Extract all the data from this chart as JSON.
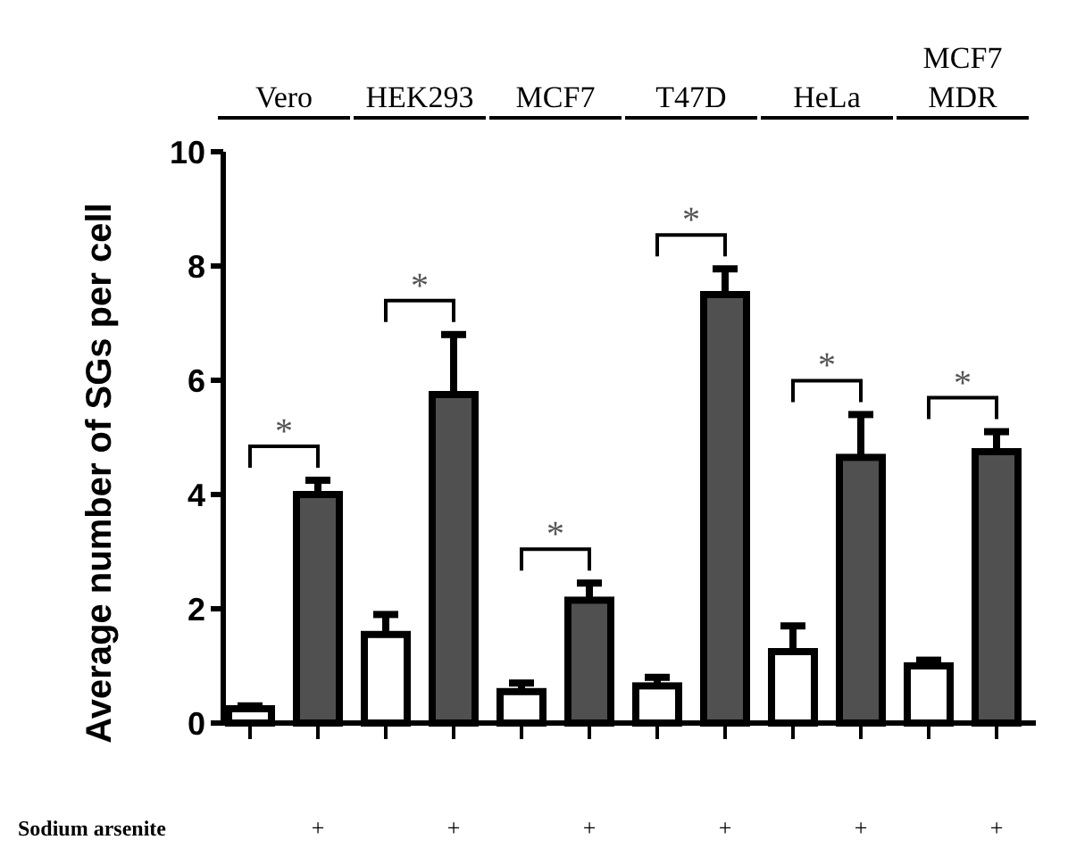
{
  "chart_data": {
    "type": "bar",
    "ylabel": "Average number of SGs per cell",
    "xlabel": "Sodium arsenite",
    "categories": [
      null,
      "+",
      null,
      "+",
      null,
      "+",
      null,
      "+",
      null,
      "+",
      null,
      "+"
    ],
    "values": [
      0.25,
      4.0,
      1.55,
      5.75,
      0.55,
      2.15,
      0.65,
      7.5,
      1.25,
      4.65,
      1.0,
      4.75
    ],
    "errors": [
      0.05,
      0.25,
      0.35,
      1.05,
      0.15,
      0.3,
      0.15,
      0.45,
      0.45,
      0.75,
      0.1,
      0.35
    ],
    "colors": [
      "#ffffff",
      "#505050",
      "#ffffff",
      "#505050",
      "#ffffff",
      "#505050",
      "#ffffff",
      "#505050",
      "#ffffff",
      "#505050",
      "#ffffff",
      "#505050"
    ],
    "ylim": [
      0,
      10
    ],
    "yticks": [
      0,
      2,
      4,
      6,
      8,
      10
    ],
    "annotations": [
      "Vero",
      "HEK293",
      "MCF7",
      "T47D",
      "HeLa",
      "MCF7\nMDR",
      "*",
      "*",
      "*",
      "*",
      "*",
      "*"
    ]
  }
}
